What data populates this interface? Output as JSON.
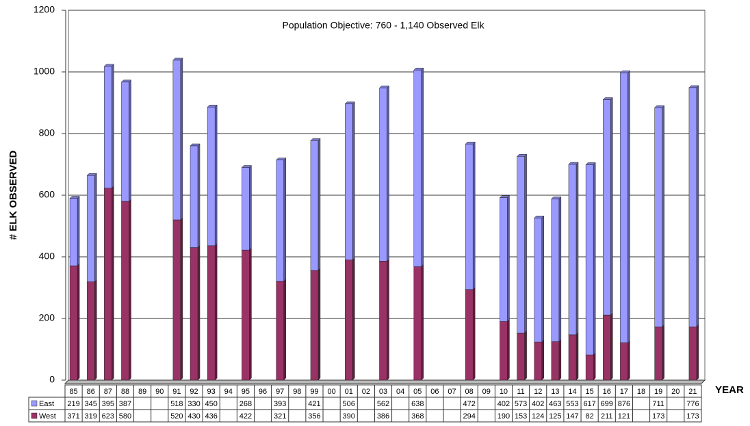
{
  "chart_data": {
    "type": "bar",
    "stacked": true,
    "annotation": "Population Objective: 760 - 1,140 Observed Elk",
    "y_label": "# ELK OBSERVED",
    "x_label": "YEAR",
    "categories": [
      "85",
      "86",
      "87",
      "88",
      "89",
      "90",
      "91",
      "92",
      "93",
      "94",
      "95",
      "96",
      "97",
      "98",
      "99",
      "00",
      "01",
      "02",
      "03",
      "04",
      "05",
      "06",
      "07",
      "08",
      "09",
      "10",
      "11",
      "12",
      "13",
      "14",
      "15",
      "16",
      "17",
      "18",
      "19",
      "20",
      "21"
    ],
    "series": [
      {
        "name": "East",
        "color": "#9999ff",
        "values": [
          219,
          345,
          395,
          387,
          null,
          null,
          518,
          330,
          450,
          null,
          268,
          null,
          393,
          null,
          421,
          null,
          506,
          null,
          562,
          null,
          638,
          null,
          null,
          472,
          null,
          402,
          573,
          402,
          463,
          553,
          617,
          699,
          876,
          null,
          711,
          null,
          776
        ]
      },
      {
        "name": "West",
        "color": "#993366",
        "values": [
          371,
          319,
          623,
          580,
          null,
          null,
          520,
          430,
          436,
          null,
          422,
          null,
          321,
          null,
          356,
          null,
          390,
          null,
          386,
          null,
          368,
          null,
          null,
          294,
          null,
          190,
          153,
          124,
          125,
          147,
          82,
          211,
          121,
          null,
          173,
          null,
          173
        ]
      }
    ],
    "ylim": [
      0,
      1200
    ],
    "yticks": [
      0,
      200,
      400,
      600,
      800,
      1000,
      1200
    ],
    "grid": true
  }
}
